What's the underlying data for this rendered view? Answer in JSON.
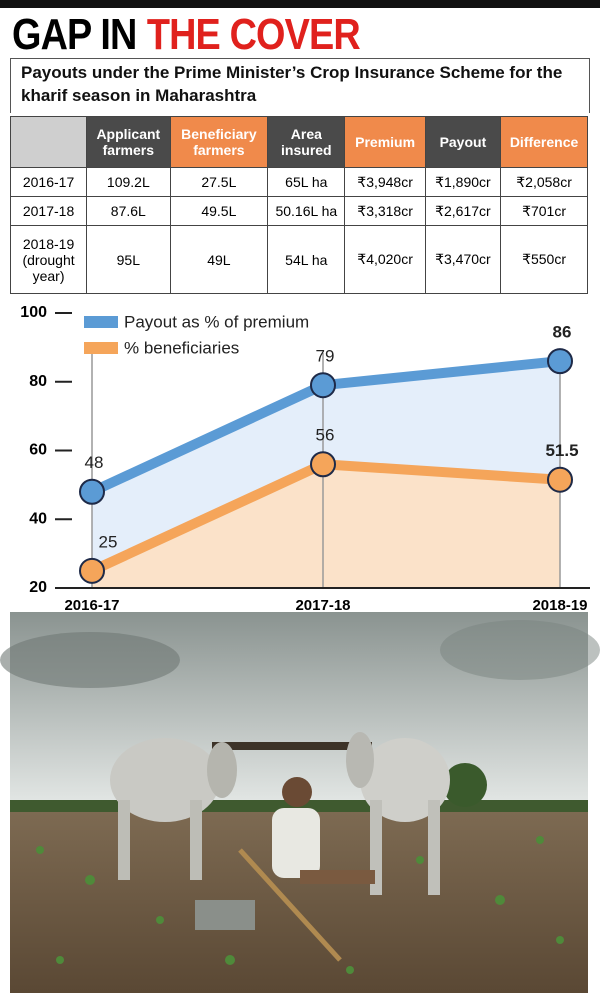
{
  "header": {
    "title": [
      "GAP IN",
      "THE COVER"
    ],
    "subtitle": "Payouts under the Prime Minister’s Crop Insurance Scheme for the kharif season in Maharashtra"
  },
  "table": {
    "columns": [
      "Applicant farmers",
      "Beneficiary farmers",
      "Area insured",
      "Premium",
      "Payout",
      "Difference"
    ],
    "rows": [
      [
        "2016-17",
        "109.2L",
        "27.5L",
        "65L ha",
        "₹3,948cr",
        "₹1,890cr",
        "₹2,058cr"
      ],
      [
        "2017-18",
        "87.6L",
        "49.5L",
        "50.16L ha",
        "₹3,318cr",
        "₹2,617cr",
        "₹701cr"
      ],
      [
        "2018-19 (drought year)",
        "95L",
        "49L",
        "54L ha",
        "₹4,020cr",
        "₹3,470cr",
        "₹550cr"
      ]
    ]
  },
  "chart_data": {
    "type": "line",
    "categories": [
      "2016-17",
      "2017-18",
      "2018-19"
    ],
    "series": [
      {
        "name": "Payout as % of premium",
        "color": "#5b9bd5",
        "area_color": "#e4eefa",
        "values": [
          48,
          79,
          86
        ]
      },
      {
        "name": "% beneficiaries",
        "color": "#f5a55a",
        "area_color": "#fbe2c9",
        "values": [
          25,
          56,
          51.5
        ]
      }
    ],
    "ylim": [
      20,
      100
    ],
    "yticks": [
      20,
      40,
      60,
      80,
      100
    ]
  }
}
